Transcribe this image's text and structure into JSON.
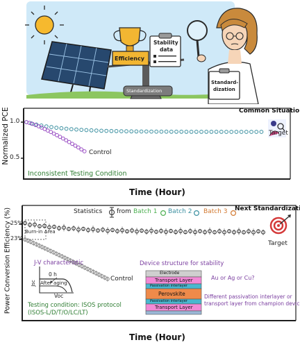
{
  "illustration": {
    "efficiency_label": "Efficiency",
    "stability_label_line1": "Stability",
    "stability_label_line2": "data",
    "standardization_board_line1": "Standard-",
    "standardization_board_line2": "dization",
    "balance_label": "Standardization"
  },
  "panel1": {
    "title": "Common Situations",
    "ylabel": "Normalized PCE",
    "xlabel": "Time (Hour)",
    "tick_10": "1.0",
    "tick_05": "0.5",
    "series_target": "Target",
    "series_control": "Control",
    "note": "Inconsistent Testing Condition"
  },
  "panel2": {
    "title": "Next Standardization",
    "ylabel": "Power Conversion Efficiency (%)",
    "xlabel": "Time (Hour)",
    "tick_25": "25%",
    "tick_23": "23%",
    "statistics_prefix": "Statistics",
    "statistics_from": "from",
    "batch1": "Batch 1",
    "batch2": "Batch 2",
    "batch3": "Batch 3",
    "burn_in": "Burn-in Area",
    "series_target": "Target",
    "series_control": "Control",
    "jv_title": "J-V characteristic",
    "jv_0h": "0 h",
    "jv_after": "After aging",
    "jv_jsc": "Jsc",
    "jv_voc": "Voc",
    "testing_line1": "Testing condition: ISOS protocol",
    "testing_line2": "(ISOS-L/D/T/O/LC/LT)",
    "device_title": "Device structure for stability",
    "layer_electrode": "Electrode",
    "layer_transport_top": "Transport Layer",
    "layer_passivation_top": "Passivation interlayer",
    "layer_perovskite": "Perovskite",
    "layer_passivation_bottom": "Passivation interlayer",
    "layer_transport_bottom": "Transport Layer",
    "electrode_note": "Au or Ag or Cu?",
    "passivation_note_line1": "Different passivation interlayer or",
    "passivation_note_line2": "transport layer from champion device?"
  },
  "colors": {
    "sky": "#bfe3f7",
    "gold": "#f2b632",
    "teal_series": "#3a8fa0",
    "purple_series": "#9a4ec4",
    "gray_series": "#8a8a8a",
    "green_text": "#2e7d32",
    "purple_text": "#7b3fa0",
    "orange_text": "#c2672a"
  }
}
